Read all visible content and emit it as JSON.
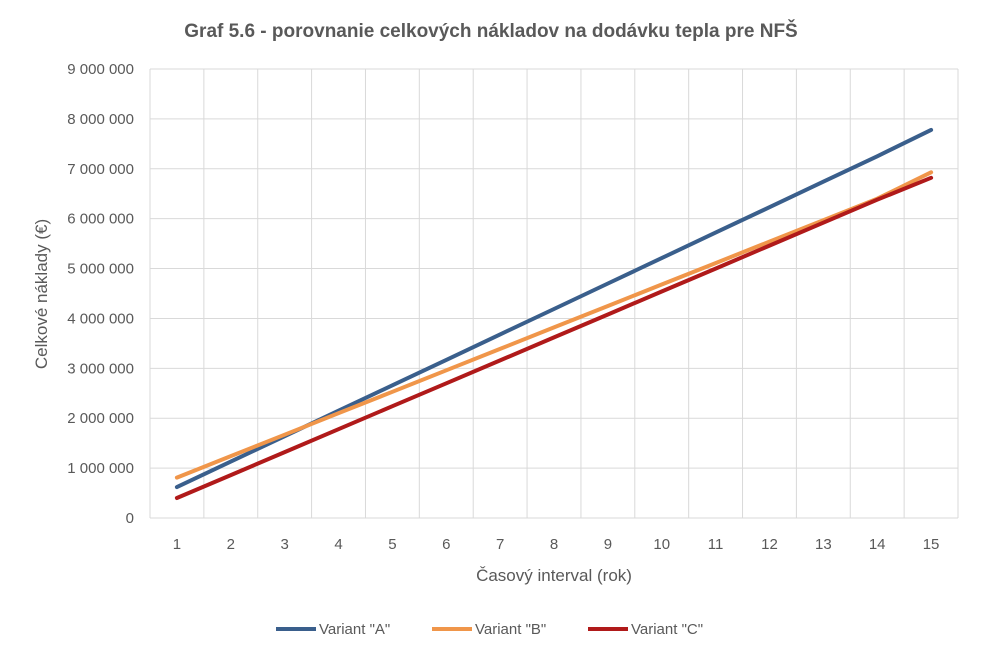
{
  "chart_data": {
    "type": "line",
    "title": "Graf 5.6 - porovnanie celkových nákladov na dodávku tepla pre NFŠ",
    "xlabel": "Časový interval (rok)",
    "ylabel": "Celkové náklady (€)",
    "x": [
      1,
      2,
      3,
      4,
      5,
      6,
      7,
      8,
      9,
      10,
      11,
      12,
      13,
      14,
      15
    ],
    "x_tick_labels": [
      "1",
      "2",
      "3",
      "4",
      "5",
      "6",
      "7",
      "8",
      "9",
      "10",
      "11",
      "12",
      "13",
      "14",
      "15"
    ],
    "ylim": [
      0,
      9000000
    ],
    "y_ticks": [
      0,
      1000000,
      2000000,
      3000000,
      4000000,
      5000000,
      6000000,
      7000000,
      8000000,
      9000000
    ],
    "y_tick_labels": [
      "0",
      "1 000 000",
      "2 000 000",
      "3 000 000",
      "4 000 000",
      "5 000 000",
      "6 000 000",
      "7 000 000",
      "8 000 000",
      "9 000 000"
    ],
    "grid": true,
    "legend_position": "bottom",
    "series": [
      {
        "name": "Variant \"A\"",
        "color": "#3a5f8c",
        "values": [
          620000,
          1130000,
          1640000,
          2150000,
          2660000,
          3170000,
          3680000,
          4190000,
          4700000,
          5210000,
          5720000,
          6230000,
          6740000,
          7250000,
          7780000
        ]
      },
      {
        "name": "Variant \"B\"",
        "color": "#f0964a",
        "values": [
          810000,
          1240000,
          1670000,
          2100000,
          2530000,
          2960000,
          3390000,
          3820000,
          4250000,
          4680000,
          5110000,
          5540000,
          5970000,
          6400000,
          6930000
        ]
      },
      {
        "name": "Variant \"C\"",
        "color": "#b01a1a",
        "values": [
          400000,
          860000,
          1320000,
          1780000,
          2240000,
          2700000,
          3160000,
          3620000,
          4080000,
          4540000,
          5000000,
          5460000,
          5920000,
          6380000,
          6820000
        ]
      }
    ]
  }
}
